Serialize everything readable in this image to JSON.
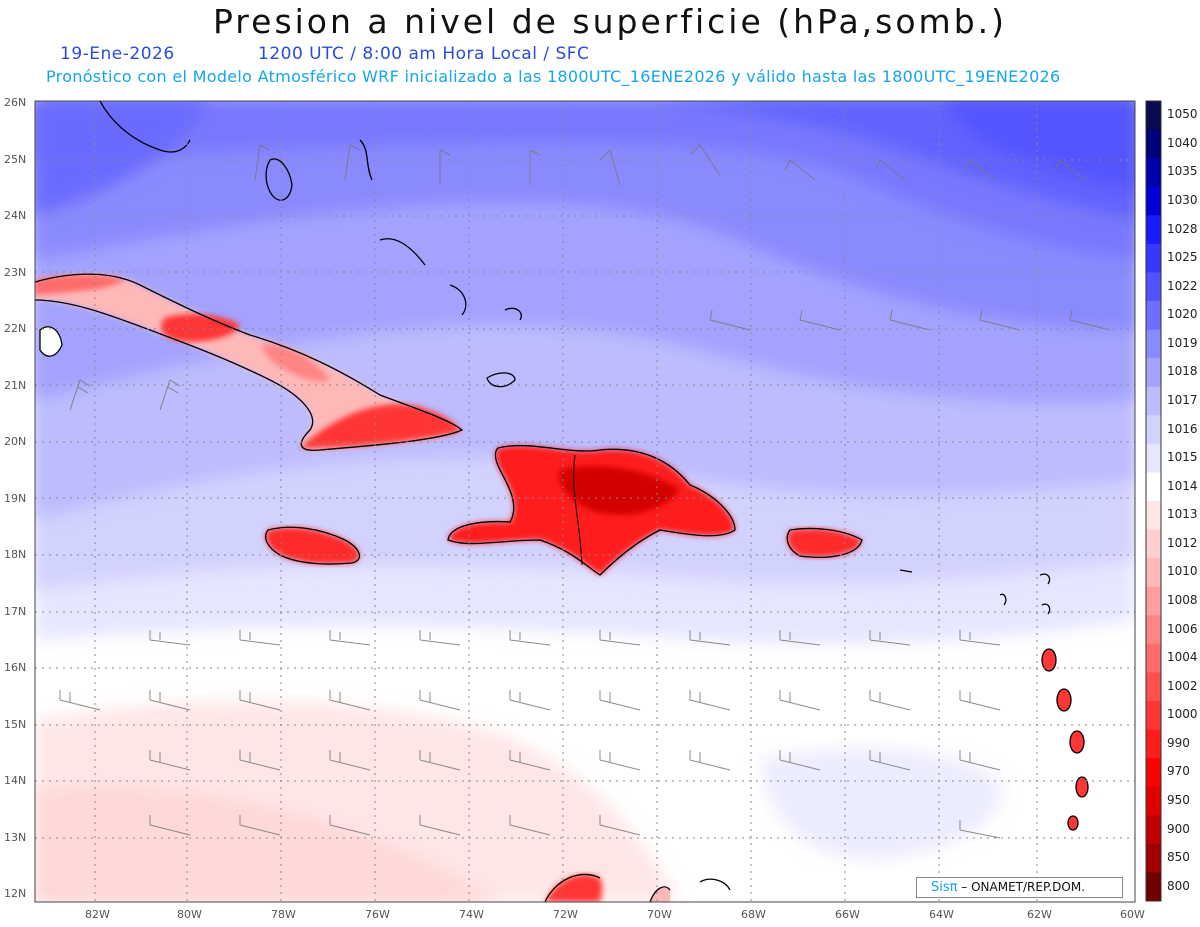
{
  "title": "Presion a nivel de superficie (hPa,somb.)",
  "date_label": "19-Ene-2026",
  "time_label": "1200 UTC / 8:00 am Hora Local / SFC",
  "forecast_label": "Pronóstico con el Modelo Atmosférico WRF inicializado a las 1800UTC_16ENE2026 y válido hasta las  1800UTC_19ENE2026",
  "lat_ticks": [
    "26N",
    "25N",
    "24N",
    "23N",
    "22N",
    "21N",
    "20N",
    "19N",
    "18N",
    "17N",
    "16N",
    "15N",
    "14N",
    "13N",
    "12N"
  ],
  "lon_ticks": [
    "82W",
    "80W",
    "78W",
    "76W",
    "74W",
    "72W",
    "70W",
    "68W",
    "66W",
    "64W",
    "62W",
    "60W"
  ],
  "colorbar": [
    {
      "value": "1050",
      "color": "#0a0a50"
    },
    {
      "value": "1040",
      "color": "#00007a"
    },
    {
      "value": "1035",
      "color": "#0000a8"
    },
    {
      "value": "1030",
      "color": "#0000d6"
    },
    {
      "value": "1028",
      "color": "#1a1aff"
    },
    {
      "value": "1025",
      "color": "#3737ff"
    },
    {
      "value": "1022",
      "color": "#5252ff"
    },
    {
      "value": "1020",
      "color": "#6e6eff"
    },
    {
      "value": "1019",
      "color": "#8a8aff"
    },
    {
      "value": "1018",
      "color": "#a3a3ff"
    },
    {
      "value": "1017",
      "color": "#bcbcff"
    },
    {
      "value": "1016",
      "color": "#d2d2ff"
    },
    {
      "value": "1015",
      "color": "#e6e6ff"
    },
    {
      "value": "1014",
      "color": "#ffffff"
    },
    {
      "value": "1013",
      "color": "#ffe6e6"
    },
    {
      "value": "1012",
      "color": "#ffd0d0"
    },
    {
      "value": "1010",
      "color": "#ffb8b8"
    },
    {
      "value": "1008",
      "color": "#ff9e9e"
    },
    {
      "value": "1006",
      "color": "#ff8484"
    },
    {
      "value": "1004",
      "color": "#ff6a6a"
    },
    {
      "value": "1002",
      "color": "#ff5050"
    },
    {
      "value": "1000",
      "color": "#ff3636"
    },
    {
      "value": "990",
      "color": "#ff1c1c"
    },
    {
      "value": "970",
      "color": "#ff0000"
    },
    {
      "value": "950",
      "color": "#e00000"
    },
    {
      "value": "900",
      "color": "#c00000"
    },
    {
      "value": "850",
      "color": "#a00000"
    },
    {
      "value": "800",
      "color": "#700000"
    }
  ],
  "credit": {
    "brand": "Sisπ",
    "text": "– ONAMET/REP.DOM."
  },
  "colors": {
    "high_pressure": "#5555ff",
    "low_pressure": "#ff3636",
    "neutral": "#ffffff"
  }
}
